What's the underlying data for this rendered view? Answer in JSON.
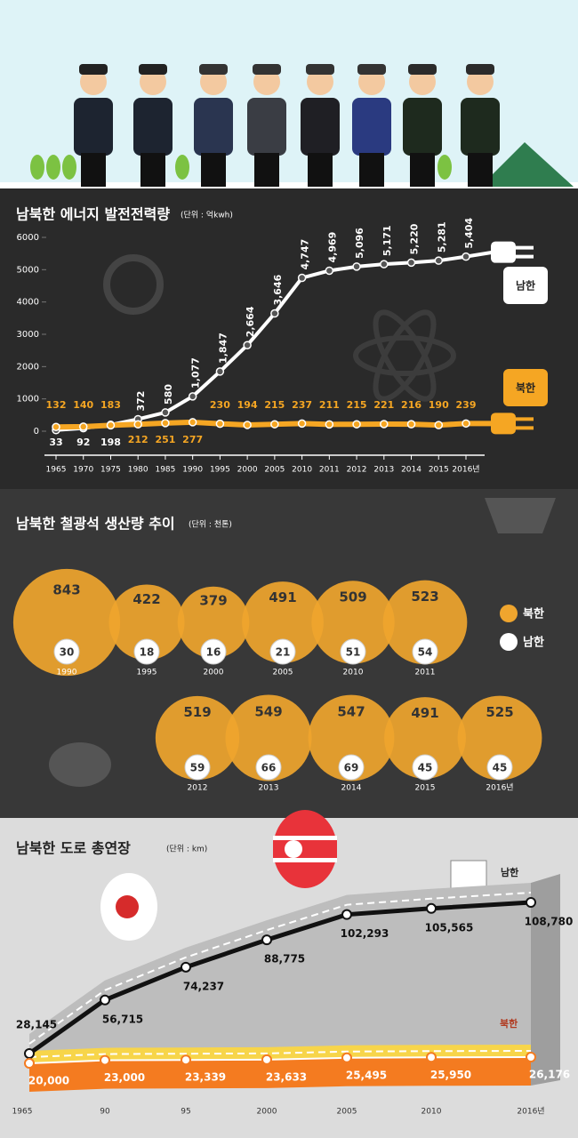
{
  "chart_data": [
    {
      "type": "line",
      "title": "남북한 에너지 발전전력량",
      "subtitle": "(단위 : 억kwh)",
      "categories": [
        "1965",
        "1970",
        "1975",
        "1980",
        "1985",
        "1990",
        "1995",
        "2000",
        "2005",
        "2010",
        "2011",
        "2012",
        "2013",
        "2014",
        "2015",
        "2016년"
      ],
      "ylim": [
        0,
        6000
      ],
      "yticks": [
        0,
        1000,
        2000,
        3000,
        4000,
        5000,
        6000
      ],
      "series": [
        {
          "name": "남한",
          "color": "#ffffff",
          "values": [
            33,
            92,
            198,
            372,
            580,
            1077,
            1847,
            2664,
            3646,
            4747,
            4969,
            5096,
            5171,
            5220,
            5281,
            5404
          ],
          "value_labels": [
            "33",
            "92",
            "198",
            "372",
            "580",
            "1,077",
            "1,847",
            "2,664",
            "3,646",
            "4,747",
            "4,969",
            "5,096",
            "5,171",
            "5,220",
            "5,281",
            "5,404"
          ]
        },
        {
          "name": "북한",
          "color": "#f5a623",
          "values": [
            132,
            140,
            183,
            212,
            251,
            277,
            230,
            194,
            215,
            237,
            211,
            215,
            221,
            216,
            190,
            239
          ]
        }
      ]
    },
    {
      "type": "bubble",
      "title": "남북한 철광석 생산량 추이",
      "subtitle": "(단위 : 천톤)",
      "categories": [
        "1990",
        "1995",
        "2000",
        "2005",
        "2010",
        "2011",
        "2012",
        "2013",
        "2014",
        "2015",
        "2016년"
      ],
      "series": [
        {
          "name": "북한",
          "color": "#efa52e",
          "values": [
            843,
            422,
            379,
            491,
            509,
            523,
            519,
            549,
            547,
            491,
            525
          ]
        },
        {
          "name": "남한",
          "color": "#ffffff",
          "values": [
            30,
            18,
            16,
            21,
            51,
            54,
            59,
            66,
            69,
            45,
            45
          ]
        }
      ]
    },
    {
      "type": "line",
      "title": "남북한 도로 총연장",
      "subtitle": "(단위 : km)",
      "categories": [
        "1965",
        "90",
        "95",
        "2000",
        "2005",
        "2010",
        "2016년"
      ],
      "series": [
        {
          "name": "남한",
          "color": "#111111",
          "values": [
            28145,
            56715,
            74237,
            88775,
            102293,
            105565,
            108780
          ],
          "value_labels": [
            "28,145",
            "56,715",
            "74,237",
            "88,775",
            "102,293",
            "105,565",
            "108,780"
          ]
        },
        {
          "name": "북한",
          "color": "#f47b20",
          "values": [
            20000,
            23000,
            23339,
            23633,
            25495,
            25950,
            26176
          ],
          "value_labels": [
            "20,000",
            "23,000",
            "23,339",
            "23,633",
            "25,495",
            "25,950",
            "26,176"
          ]
        }
      ]
    }
  ]
}
